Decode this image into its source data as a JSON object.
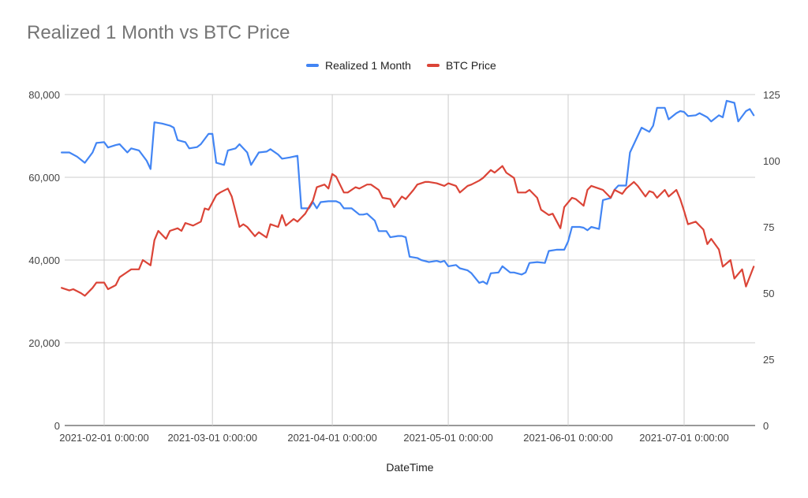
{
  "colors": {
    "series1": "#4285f4",
    "series2": "#db4437",
    "grid": "#cccccc",
    "axis": "#333333",
    "tick": "#444444"
  },
  "chart_data": {
    "type": "line",
    "title": "Realized 1 Month vs BTC Price",
    "xlabel": "DateTime",
    "ylabel_left": "",
    "ylabel_right": "",
    "legend_position": "top",
    "grid": true,
    "ylim_left": [
      0,
      80000
    ],
    "ylim_right": [
      0,
      125
    ],
    "yticks_left": [
      "0",
      "20,000",
      "40,000",
      "60,000",
      "80,000"
    ],
    "yticks_right": [
      "0",
      "25",
      "50",
      "75",
      "100",
      "125"
    ],
    "x_tick_labels": [
      {
        "label": "2021-02-01 0:00:00",
        "date": "2021-02-01"
      },
      {
        "label": "2021-03-01 0:00:00",
        "date": "2021-03-01"
      },
      {
        "label": "2021-04-01 0:00:00",
        "date": "2021-04-01"
      },
      {
        "label": "2021-05-01 0:00:00",
        "date": "2021-05-01"
      },
      {
        "label": "2021-06-01 0:00:00",
        "date": "2021-06-01"
      },
      {
        "label": "2021-07-01 0:00:00",
        "date": "2021-07-01"
      }
    ],
    "x_range": [
      "2021-01-21",
      "2021-07-19"
    ],
    "series": [
      {
        "name": "Realized 1 Month",
        "axis": "left",
        "points": [
          [
            "2021-01-21",
            66000
          ],
          [
            "2021-01-23",
            66000
          ],
          [
            "2021-01-25",
            65000
          ],
          [
            "2021-01-27",
            63500
          ],
          [
            "2021-01-29",
            66000
          ],
          [
            "2021-01-30",
            68300
          ],
          [
            "2021-02-01",
            68500
          ],
          [
            "2021-02-02",
            67200
          ],
          [
            "2021-02-04",
            67800
          ],
          [
            "2021-02-05",
            68000
          ],
          [
            "2021-02-07",
            66000
          ],
          [
            "2021-02-08",
            67000
          ],
          [
            "2021-02-10",
            66500
          ],
          [
            "2021-02-12",
            64000
          ],
          [
            "2021-02-13",
            62000
          ],
          [
            "2021-02-14",
            73300
          ],
          [
            "2021-02-16",
            73000
          ],
          [
            "2021-02-18",
            72500
          ],
          [
            "2021-02-19",
            72000
          ],
          [
            "2021-02-20",
            69000
          ],
          [
            "2021-02-22",
            68500
          ],
          [
            "2021-02-23",
            67000
          ],
          [
            "2021-02-25",
            67300
          ],
          [
            "2021-02-26",
            68000
          ],
          [
            "2021-02-28",
            70500
          ],
          [
            "2021-03-01",
            70500
          ],
          [
            "2021-03-02",
            63500
          ],
          [
            "2021-03-04",
            63000
          ],
          [
            "2021-03-05",
            66500
          ],
          [
            "2021-03-07",
            67000
          ],
          [
            "2021-03-08",
            68000
          ],
          [
            "2021-03-10",
            66000
          ],
          [
            "2021-03-11",
            63000
          ],
          [
            "2021-03-13",
            66000
          ],
          [
            "2021-03-15",
            66200
          ],
          [
            "2021-03-16",
            66800
          ],
          [
            "2021-03-18",
            65500
          ],
          [
            "2021-03-19",
            64500
          ],
          [
            "2021-03-21",
            64800
          ],
          [
            "2021-03-23",
            65200
          ],
          [
            "2021-03-24",
            52500
          ],
          [
            "2021-03-26",
            52500
          ],
          [
            "2021-03-27",
            54000
          ],
          [
            "2021-03-28",
            52500
          ],
          [
            "2021-03-29",
            54000
          ],
          [
            "2021-03-31",
            54200
          ],
          [
            "2021-04-02",
            54200
          ],
          [
            "2021-04-03",
            53800
          ],
          [
            "2021-04-04",
            52500
          ],
          [
            "2021-04-06",
            52500
          ],
          [
            "2021-04-08",
            51000
          ],
          [
            "2021-04-09",
            51000
          ],
          [
            "2021-04-10",
            51200
          ],
          [
            "2021-04-12",
            49500
          ],
          [
            "2021-04-13",
            47000
          ],
          [
            "2021-04-15",
            47000
          ],
          [
            "2021-04-16",
            45500
          ],
          [
            "2021-04-18",
            45800
          ],
          [
            "2021-04-19",
            45800
          ],
          [
            "2021-04-20",
            45500
          ],
          [
            "2021-04-21",
            40800
          ],
          [
            "2021-04-23",
            40500
          ],
          [
            "2021-04-24",
            40000
          ],
          [
            "2021-04-26",
            39500
          ],
          [
            "2021-04-28",
            39800
          ],
          [
            "2021-04-29",
            39500
          ],
          [
            "2021-04-30",
            39800
          ],
          [
            "2021-05-01",
            38500
          ],
          [
            "2021-05-03",
            38800
          ],
          [
            "2021-05-04",
            38000
          ],
          [
            "2021-05-06",
            37500
          ],
          [
            "2021-05-07",
            36800
          ],
          [
            "2021-05-09",
            34500
          ],
          [
            "2021-05-10",
            34800
          ],
          [
            "2021-05-11",
            34200
          ],
          [
            "2021-05-12",
            36800
          ],
          [
            "2021-05-14",
            37000
          ],
          [
            "2021-05-15",
            38500
          ],
          [
            "2021-05-17",
            37000
          ],
          [
            "2021-05-18",
            37000
          ],
          [
            "2021-05-20",
            36500
          ],
          [
            "2021-05-21",
            37000
          ],
          [
            "2021-05-22",
            39300
          ],
          [
            "2021-05-24",
            39500
          ],
          [
            "2021-05-26",
            39300
          ],
          [
            "2021-05-27",
            42200
          ],
          [
            "2021-05-29",
            42500
          ],
          [
            "2021-05-31",
            42500
          ],
          [
            "2021-06-01",
            44500
          ],
          [
            "2021-06-02",
            48000
          ],
          [
            "2021-06-04",
            48000
          ],
          [
            "2021-06-05",
            47800
          ],
          [
            "2021-06-06",
            47200
          ],
          [
            "2021-06-07",
            48000
          ],
          [
            "2021-06-09",
            47500
          ],
          [
            "2021-06-10",
            54500
          ],
          [
            "2021-06-12",
            55000
          ],
          [
            "2021-06-13",
            57000
          ],
          [
            "2021-06-14",
            58000
          ],
          [
            "2021-06-16",
            58000
          ],
          [
            "2021-06-17",
            66000
          ],
          [
            "2021-06-19",
            70000
          ],
          [
            "2021-06-20",
            72000
          ],
          [
            "2021-06-22",
            71000
          ],
          [
            "2021-06-23",
            72500
          ],
          [
            "2021-06-24",
            76800
          ],
          [
            "2021-06-26",
            76800
          ],
          [
            "2021-06-27",
            74000
          ],
          [
            "2021-06-29",
            75500
          ],
          [
            "2021-06-30",
            76000
          ],
          [
            "2021-07-01",
            75800
          ],
          [
            "2021-07-02",
            74800
          ],
          [
            "2021-07-04",
            75000
          ],
          [
            "2021-07-05",
            75500
          ],
          [
            "2021-07-07",
            74500
          ],
          [
            "2021-07-08",
            73500
          ],
          [
            "2021-07-10",
            75000
          ],
          [
            "2021-07-11",
            74500
          ],
          [
            "2021-07-12",
            78500
          ],
          [
            "2021-07-14",
            78000
          ],
          [
            "2021-07-15",
            73500
          ],
          [
            "2021-07-17",
            76000
          ],
          [
            "2021-07-18",
            76500
          ],
          [
            "2021-07-19",
            75000
          ]
        ]
      },
      {
        "name": "BTC Price",
        "axis": "right",
        "points": [
          [
            "2021-01-21",
            52
          ],
          [
            "2021-01-23",
            51
          ],
          [
            "2021-01-24",
            51.5
          ],
          [
            "2021-01-26",
            50
          ],
          [
            "2021-01-27",
            49
          ],
          [
            "2021-01-29",
            52
          ],
          [
            "2021-01-30",
            54
          ],
          [
            "2021-02-01",
            54
          ],
          [
            "2021-02-02",
            51.5
          ],
          [
            "2021-02-04",
            53
          ],
          [
            "2021-02-05",
            56
          ],
          [
            "2021-02-07",
            58
          ],
          [
            "2021-02-08",
            59
          ],
          [
            "2021-02-10",
            59
          ],
          [
            "2021-02-11",
            62.5
          ],
          [
            "2021-02-13",
            60.5
          ],
          [
            "2021-02-14",
            70
          ],
          [
            "2021-02-15",
            73.5
          ],
          [
            "2021-02-17",
            70.5
          ],
          [
            "2021-02-18",
            73.5
          ],
          [
            "2021-02-20",
            74.5
          ],
          [
            "2021-02-21",
            73.5
          ],
          [
            "2021-02-22",
            76.5
          ],
          [
            "2021-02-24",
            75.5
          ],
          [
            "2021-02-26",
            77
          ],
          [
            "2021-02-27",
            82
          ],
          [
            "2021-02-28",
            81.5
          ],
          [
            "2021-03-02",
            87
          ],
          [
            "2021-03-03",
            88
          ],
          [
            "2021-03-05",
            89.5
          ],
          [
            "2021-03-06",
            86.5
          ],
          [
            "2021-03-08",
            75
          ],
          [
            "2021-03-09",
            76
          ],
          [
            "2021-03-10",
            75
          ],
          [
            "2021-03-12",
            71.5
          ],
          [
            "2021-03-13",
            73
          ],
          [
            "2021-03-15",
            71
          ],
          [
            "2021-03-16",
            76
          ],
          [
            "2021-03-18",
            75
          ],
          [
            "2021-03-19",
            79.5
          ],
          [
            "2021-03-20",
            75.5
          ],
          [
            "2021-03-22",
            78
          ],
          [
            "2021-03-23",
            77
          ],
          [
            "2021-03-25",
            80
          ],
          [
            "2021-03-27",
            85
          ],
          [
            "2021-03-28",
            90
          ],
          [
            "2021-03-30",
            91
          ],
          [
            "2021-03-31",
            89.5
          ],
          [
            "2021-04-01",
            95
          ],
          [
            "2021-04-02",
            94
          ],
          [
            "2021-04-04",
            88
          ],
          [
            "2021-04-05",
            88
          ],
          [
            "2021-04-07",
            90
          ],
          [
            "2021-04-08",
            89.5
          ],
          [
            "2021-04-10",
            91
          ],
          [
            "2021-04-11",
            91
          ],
          [
            "2021-04-13",
            89
          ],
          [
            "2021-04-14",
            86
          ],
          [
            "2021-04-16",
            85.5
          ],
          [
            "2021-04-17",
            82.5
          ],
          [
            "2021-04-19",
            86.5
          ],
          [
            "2021-04-20",
            85.5
          ],
          [
            "2021-04-22",
            89
          ],
          [
            "2021-04-23",
            91
          ],
          [
            "2021-04-25",
            92
          ],
          [
            "2021-04-26",
            92
          ],
          [
            "2021-04-28",
            91.5
          ],
          [
            "2021-04-30",
            90.5
          ],
          [
            "2021-05-01",
            91.5
          ],
          [
            "2021-05-03",
            90.5
          ],
          [
            "2021-05-04",
            88
          ],
          [
            "2021-05-06",
            90.5
          ],
          [
            "2021-05-07",
            91
          ],
          [
            "2021-05-09",
            92.5
          ],
          [
            "2021-05-10",
            93.5
          ],
          [
            "2021-05-12",
            96.5
          ],
          [
            "2021-05-13",
            95.5
          ],
          [
            "2021-05-15",
            98
          ],
          [
            "2021-05-16",
            95.5
          ],
          [
            "2021-05-18",
            93.5
          ],
          [
            "2021-05-19",
            88
          ],
          [
            "2021-05-21",
            88
          ],
          [
            "2021-05-22",
            89
          ],
          [
            "2021-05-24",
            86
          ],
          [
            "2021-05-25",
            81.5
          ],
          [
            "2021-05-27",
            79.5
          ],
          [
            "2021-05-28",
            80
          ],
          [
            "2021-05-30",
            74.5
          ],
          [
            "2021-05-31",
            82.5
          ],
          [
            "2021-06-02",
            86
          ],
          [
            "2021-06-03",
            85.5
          ],
          [
            "2021-06-05",
            83
          ],
          [
            "2021-06-06",
            89
          ],
          [
            "2021-06-07",
            90.5
          ],
          [
            "2021-06-09",
            89.5
          ],
          [
            "2021-06-10",
            89
          ],
          [
            "2021-06-12",
            86
          ],
          [
            "2021-06-13",
            89
          ],
          [
            "2021-06-15",
            87.5
          ],
          [
            "2021-06-16",
            89.5
          ],
          [
            "2021-06-18",
            92
          ],
          [
            "2021-06-19",
            90.5
          ],
          [
            "2021-06-21",
            86.5
          ],
          [
            "2021-06-22",
            88.5
          ],
          [
            "2021-06-23",
            88
          ],
          [
            "2021-06-24",
            86
          ],
          [
            "2021-06-26",
            89
          ],
          [
            "2021-06-27",
            86.5
          ],
          [
            "2021-06-29",
            89
          ],
          [
            "2021-06-30",
            85.5
          ],
          [
            "2021-07-01",
            81
          ],
          [
            "2021-07-02",
            76
          ],
          [
            "2021-07-04",
            77
          ],
          [
            "2021-07-06",
            74
          ],
          [
            "2021-07-07",
            68.5
          ],
          [
            "2021-07-08",
            70.5
          ],
          [
            "2021-07-10",
            66.5
          ],
          [
            "2021-07-11",
            60
          ],
          [
            "2021-07-13",
            62.5
          ],
          [
            "2021-07-14",
            55.5
          ],
          [
            "2021-07-16",
            59
          ],
          [
            "2021-07-17",
            52.5
          ],
          [
            "2021-07-19",
            60
          ]
        ]
      }
    ]
  }
}
